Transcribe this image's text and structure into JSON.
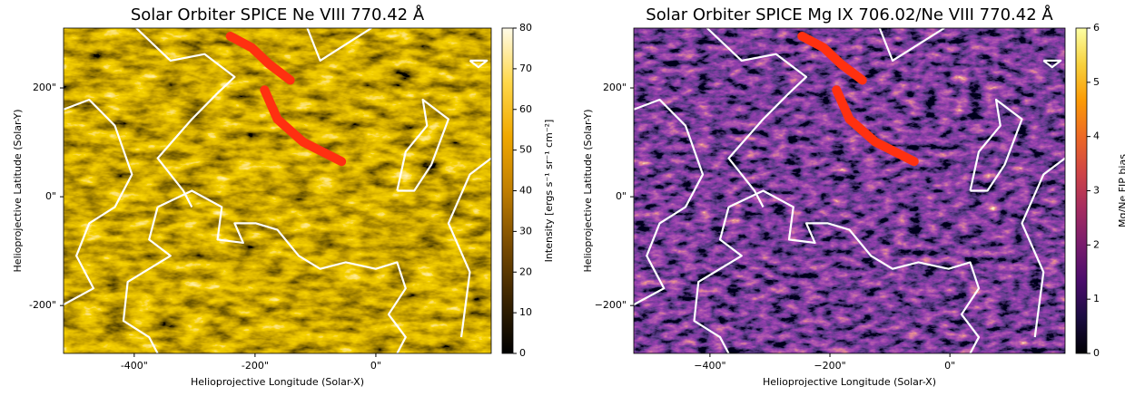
{
  "chart_data": [
    {
      "type": "heatmap",
      "title": "Solar Orbiter SPICE Ne VIII 770.42 Å",
      "x_label": "Helioprojective Longitude (Solar-X)",
      "y_label": "Helioprojective Latitude (Solar-Y)",
      "xlim": [
        -517,
        191
      ],
      "ylim": [
        -288,
        310
      ],
      "xticks": [
        {
          "value": -400,
          "label": "-400\""
        },
        {
          "value": -200,
          "label": "-200\""
        },
        {
          "value": 0,
          "label": "0\""
        }
      ],
      "yticks": [
        {
          "value": -200,
          "label": "-200\""
        },
        {
          "value": 0,
          "label": "0\""
        },
        {
          "value": 200,
          "label": "200\""
        }
      ],
      "colormap": [
        "#000000",
        "#3a2400",
        "#7a4c00",
        "#c07e00",
        "#f0a800",
        "#ffd84a",
        "#fffbe8"
      ],
      "colorbar": {
        "label": "Intensity [ergs s⁻¹ sr⁻¹ cm⁻²]",
        "lim": [
          0,
          80
        ],
        "ticks": [
          0,
          10,
          20,
          30,
          40,
          50,
          60,
          70,
          80
        ]
      }
    },
    {
      "type": "heatmap",
      "title": "Solar Orbiter SPICE Mg IX 706.02/Ne VIII 770.42 Å",
      "x_label": "Helioprojective Longitude (Solar-X)",
      "y_label": "Helioprojective Latitude (Solar-Y)",
      "xlim": [
        -527,
        192
      ],
      "ylim": [
        -288,
        310
      ],
      "xticks": [
        {
          "value": -400,
          "label": "−400\""
        },
        {
          "value": -200,
          "label": "−200\""
        },
        {
          "value": 0,
          "label": "0\""
        }
      ],
      "yticks": [
        {
          "value": -200,
          "label": "−200\""
        },
        {
          "value": 0,
          "label": "0\""
        },
        {
          "value": 200,
          "label": "200\""
        }
      ],
      "colormap": [
        "#000004",
        "#1b0c41",
        "#4a0c6b",
        "#781c6d",
        "#a52c60",
        "#cf4446",
        "#ed6925",
        "#fb9b06",
        "#f7d13d",
        "#fcffa4"
      ],
      "colorbar": {
        "label": "Mg/Ne FIP bias",
        "lim": [
          0,
          6
        ],
        "ticks": [
          0,
          1,
          2,
          3,
          4,
          5,
          6
        ]
      }
    }
  ]
}
